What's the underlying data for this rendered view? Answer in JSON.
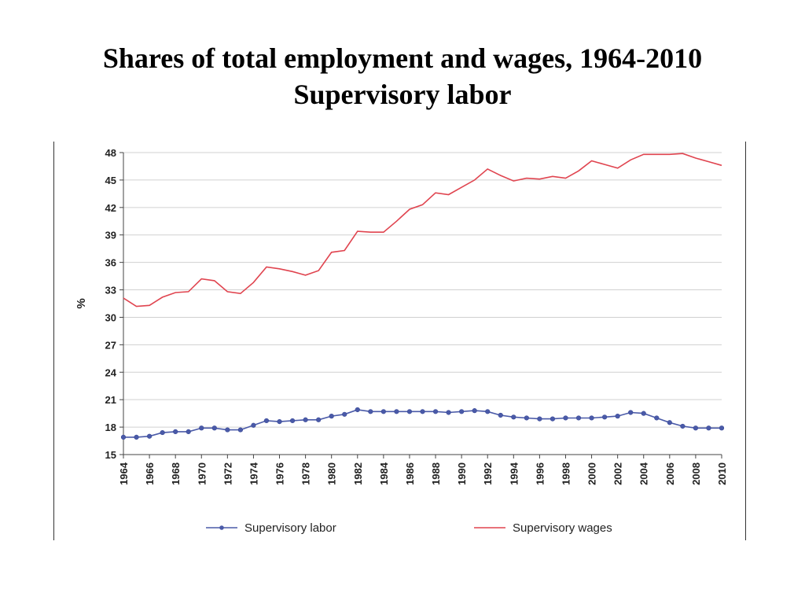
{
  "chart_data": {
    "type": "line",
    "title": "Shares of total employment and wages, 1964-2010",
    "subtitle": "Supervisory labor",
    "ylabel": "%",
    "xlabel": "",
    "ylim": [
      15,
      48
    ],
    "yticks": [
      15,
      18,
      21,
      24,
      27,
      30,
      33,
      36,
      39,
      42,
      45,
      48
    ],
    "xlim": [
      1964,
      2010
    ],
    "xticks": [
      1964,
      1966,
      1968,
      1970,
      1972,
      1974,
      1976,
      1978,
      1980,
      1982,
      1984,
      1986,
      1988,
      1990,
      1992,
      1994,
      1996,
      1998,
      2000,
      2002,
      2004,
      2006,
      2008,
      2010
    ],
    "grid": true,
    "legend_position": "bottom",
    "x": [
      1964,
      1965,
      1966,
      1967,
      1968,
      1969,
      1970,
      1971,
      1972,
      1973,
      1974,
      1975,
      1976,
      1977,
      1978,
      1979,
      1980,
      1981,
      1982,
      1983,
      1984,
      1985,
      1986,
      1987,
      1988,
      1989,
      1990,
      1991,
      1992,
      1993,
      1994,
      1995,
      1996,
      1997,
      1998,
      1999,
      2000,
      2001,
      2002,
      2003,
      2004,
      2005,
      2006,
      2007,
      2008,
      2009,
      2010
    ],
    "series": [
      {
        "name": "Supervisory labor",
        "color": "#4a5aa8",
        "marker": "circle",
        "values": [
          16.9,
          16.9,
          17.0,
          17.4,
          17.5,
          17.5,
          17.9,
          17.9,
          17.7,
          17.7,
          18.2,
          18.7,
          18.6,
          18.7,
          18.8,
          18.8,
          19.2,
          19.4,
          19.9,
          19.7,
          19.7,
          19.7,
          19.7,
          19.7,
          19.7,
          19.6,
          19.7,
          19.8,
          19.7,
          19.3,
          19.1,
          19.0,
          18.9,
          18.9,
          19.0,
          19.0,
          19.0,
          19.1,
          19.2,
          19.6,
          19.5,
          19.0,
          18.5,
          18.1,
          17.9,
          17.9,
          17.9
        ]
      },
      {
        "name": "Supervisory wages",
        "color": "#e0444f",
        "marker": "none",
        "values": [
          32.1,
          31.2,
          31.3,
          32.2,
          32.7,
          32.8,
          34.2,
          34.0,
          32.8,
          32.6,
          33.8,
          35.5,
          35.3,
          35.0,
          34.6,
          35.1,
          37.1,
          37.3,
          39.4,
          39.3,
          39.3,
          40.5,
          41.8,
          42.3,
          43.6,
          43.4,
          44.2,
          45.0,
          46.2,
          45.5,
          44.9,
          45.2,
          45.1,
          45.4,
          45.2,
          46.0,
          47.1,
          46.7,
          46.3,
          47.2,
          47.8,
          47.8,
          47.8,
          47.9,
          47.4,
          47.0,
          46.6
        ]
      }
    ]
  }
}
